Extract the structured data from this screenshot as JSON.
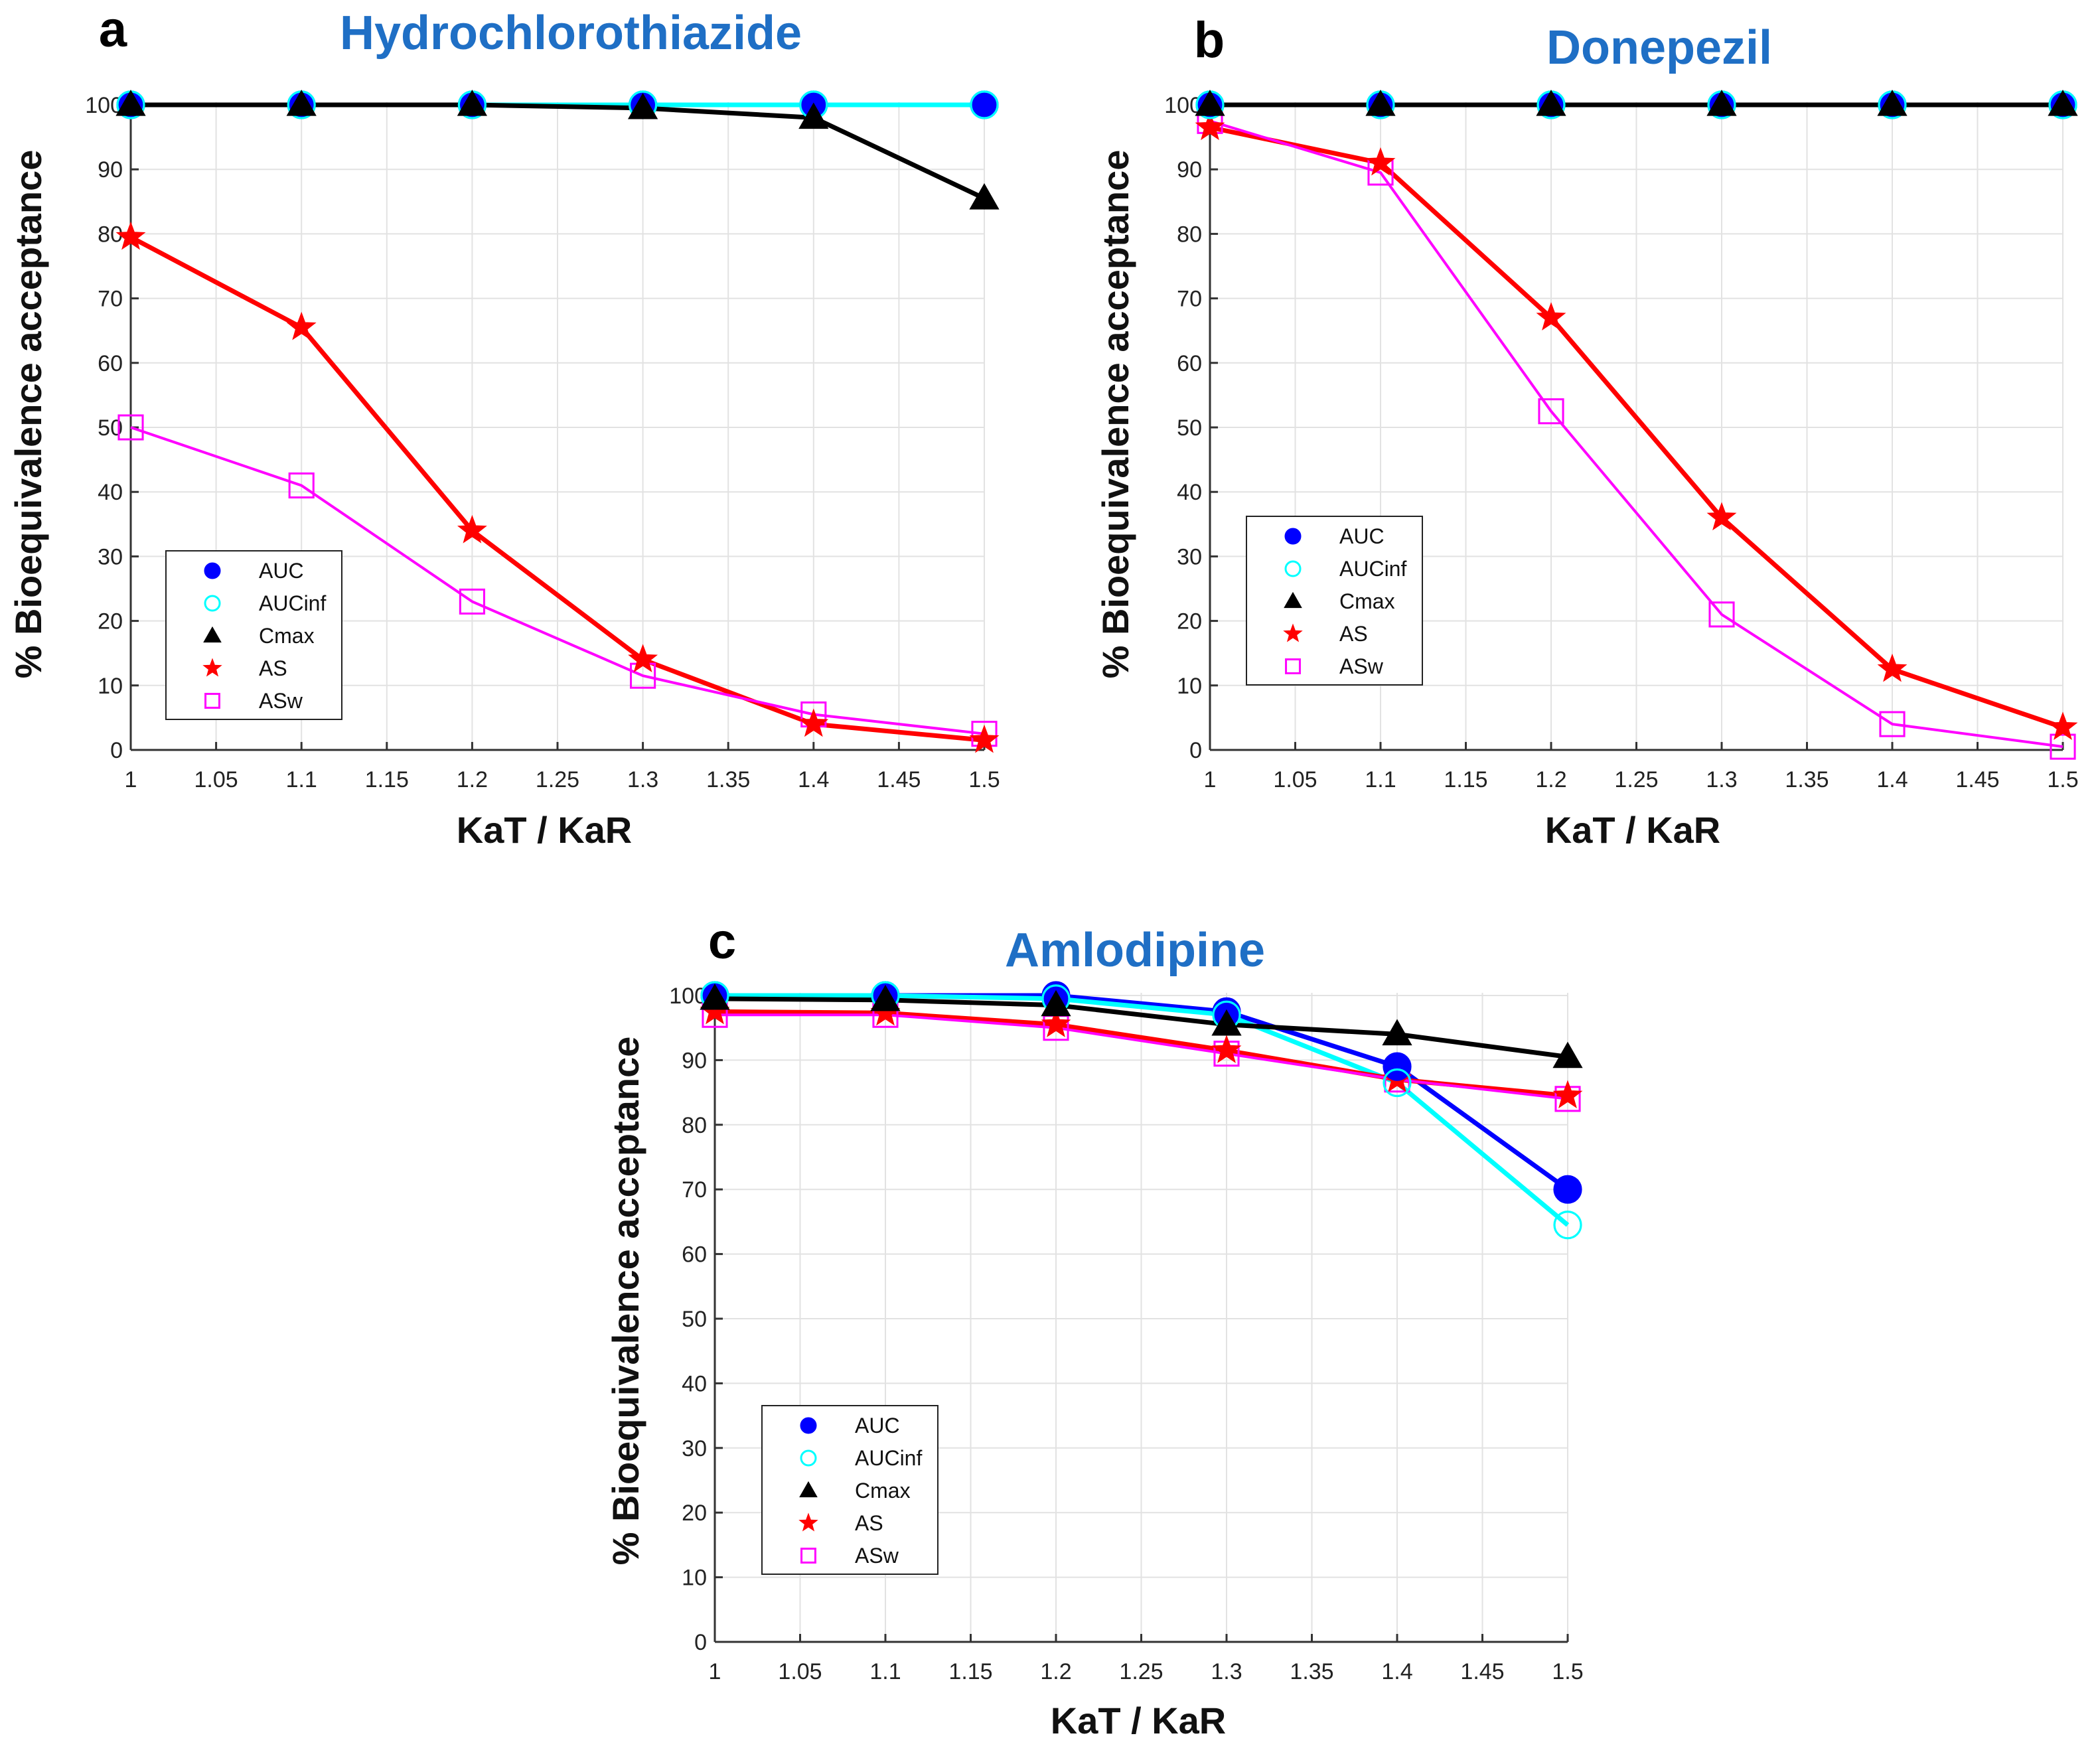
{
  "chart_data": [
    {
      "type": "line",
      "panel_letter": "a",
      "title": "Hydrochlorothiazide",
      "xlabel": "KaT / KaR",
      "ylabel": "% Bioequivalence acceptance",
      "xlim": [
        1,
        1.5
      ],
      "ylim": [
        0,
        100
      ],
      "x_ticks": [
        "1",
        "1.05",
        "1.1",
        "1.15",
        "1.2",
        "1.25",
        "1.3",
        "1.35",
        "1.4",
        "1.45",
        "1.5"
      ],
      "y_ticks": [
        "0",
        "10",
        "20",
        "30",
        "40",
        "50",
        "60",
        "70",
        "80",
        "90",
        "100"
      ],
      "grid": true,
      "legend_position": "lower-left",
      "x": [
        1,
        1.1,
        1.2,
        1.3,
        1.4,
        1.5
      ],
      "series": [
        {
          "name": "AUC",
          "key": "AUC",
          "values": [
            100,
            100,
            100,
            100,
            100,
            100
          ]
        },
        {
          "name": "AUCinf",
          "key": "AUCinf",
          "values": [
            100,
            100,
            100,
            100,
            100,
            100
          ]
        },
        {
          "name": "Cmax",
          "key": "Cmax",
          "values": [
            100,
            100,
            100,
            99.5,
            98,
            85.5
          ]
        },
        {
          "name": "AS",
          "key": "AS",
          "values": [
            79.5,
            65.5,
            34,
            14,
            4,
            1.5
          ]
        },
        {
          "name": "ASw",
          "key": "ASw",
          "values": [
            50,
            41,
            23,
            11.5,
            5.5,
            2.5
          ]
        }
      ]
    },
    {
      "type": "line",
      "panel_letter": "b",
      "title": "Donepezil",
      "xlabel": "KaT / KaR",
      "ylabel": "% Bioequivalence acceptance",
      "xlim": [
        1,
        1.5
      ],
      "ylim": [
        0,
        100
      ],
      "x_ticks": [
        "1",
        "1.05",
        "1.1",
        "1.15",
        "1.2",
        "1.25",
        "1.3",
        "1.35",
        "1.4",
        "1.45",
        "1.5"
      ],
      "y_ticks": [
        "0",
        "10",
        "20",
        "30",
        "40",
        "50",
        "60",
        "70",
        "80",
        "90",
        "100"
      ],
      "grid": true,
      "legend_position": "lower-left",
      "x": [
        1,
        1.1,
        1.2,
        1.3,
        1.4,
        1.5
      ],
      "series": [
        {
          "name": "AUC",
          "key": "AUC",
          "values": [
            100,
            100,
            100,
            100,
            100,
            100
          ]
        },
        {
          "name": "AUCinf",
          "key": "AUCinf",
          "values": [
            100,
            100,
            100,
            100,
            100,
            100
          ]
        },
        {
          "name": "Cmax",
          "key": "Cmax",
          "values": [
            100,
            100,
            100,
            100,
            100,
            100
          ]
        },
        {
          "name": "AS",
          "key": "AS",
          "values": [
            96.5,
            91,
            67,
            36,
            12.5,
            3.5
          ]
        },
        {
          "name": "ASw",
          "key": "ASw",
          "values": [
            97.5,
            89.5,
            52.5,
            21,
            4,
            0.5
          ]
        }
      ]
    },
    {
      "type": "line",
      "panel_letter": "c",
      "title": "Amlodipine",
      "xlabel": "KaT / KaR",
      "ylabel": "% Bioequivalence acceptance",
      "xlim": [
        1,
        1.5
      ],
      "ylim": [
        0,
        100
      ],
      "x_ticks": [
        "1",
        "1.05",
        "1.1",
        "1.15",
        "1.2",
        "1.25",
        "1.3",
        "1.35",
        "1.4",
        "1.45",
        "1.5"
      ],
      "y_ticks": [
        "0",
        "10",
        "20",
        "30",
        "40",
        "50",
        "60",
        "70",
        "80",
        "90",
        "100"
      ],
      "grid": true,
      "legend_position": "lower-left",
      "x": [
        1,
        1.1,
        1.2,
        1.3,
        1.4,
        1.5
      ],
      "series": [
        {
          "name": "AUC",
          "key": "AUC",
          "values": [
            100,
            100,
            100,
            97.5,
            89,
            70
          ]
        },
        {
          "name": "AUCinf",
          "key": "AUCinf",
          "values": [
            100,
            100,
            99.5,
            97,
            86.5,
            64.5
          ]
        },
        {
          "name": "Cmax",
          "key": "Cmax",
          "values": [
            99.5,
            99.3,
            98.5,
            95.5,
            94,
            90.5
          ]
        },
        {
          "name": "AS",
          "key": "AS",
          "values": [
            97.5,
            97.3,
            95.5,
            91.5,
            87,
            84.5
          ]
        },
        {
          "name": "ASw",
          "key": "ASw",
          "values": [
            97,
            97,
            95,
            91,
            87,
            84
          ]
        }
      ]
    }
  ],
  "styles": {
    "AUC": {
      "line": "#0000ff",
      "marker": "circle",
      "fill": "#0000ff",
      "stroke": "#0000ff"
    },
    "AUCinf": {
      "line": "#00ffff",
      "marker": "circle",
      "fill": "none",
      "stroke": "#00ffff"
    },
    "Cmax": {
      "line": "#000000",
      "marker": "triangle",
      "fill": "#000000",
      "stroke": "#000000"
    },
    "AS": {
      "line": "#ff0000",
      "marker": "star",
      "fill": "#ff0000",
      "stroke": "#ff0000"
    },
    "ASw": {
      "line": "#ff00ff",
      "marker": "square",
      "fill": "none",
      "stroke": "#ff00ff"
    }
  }
}
